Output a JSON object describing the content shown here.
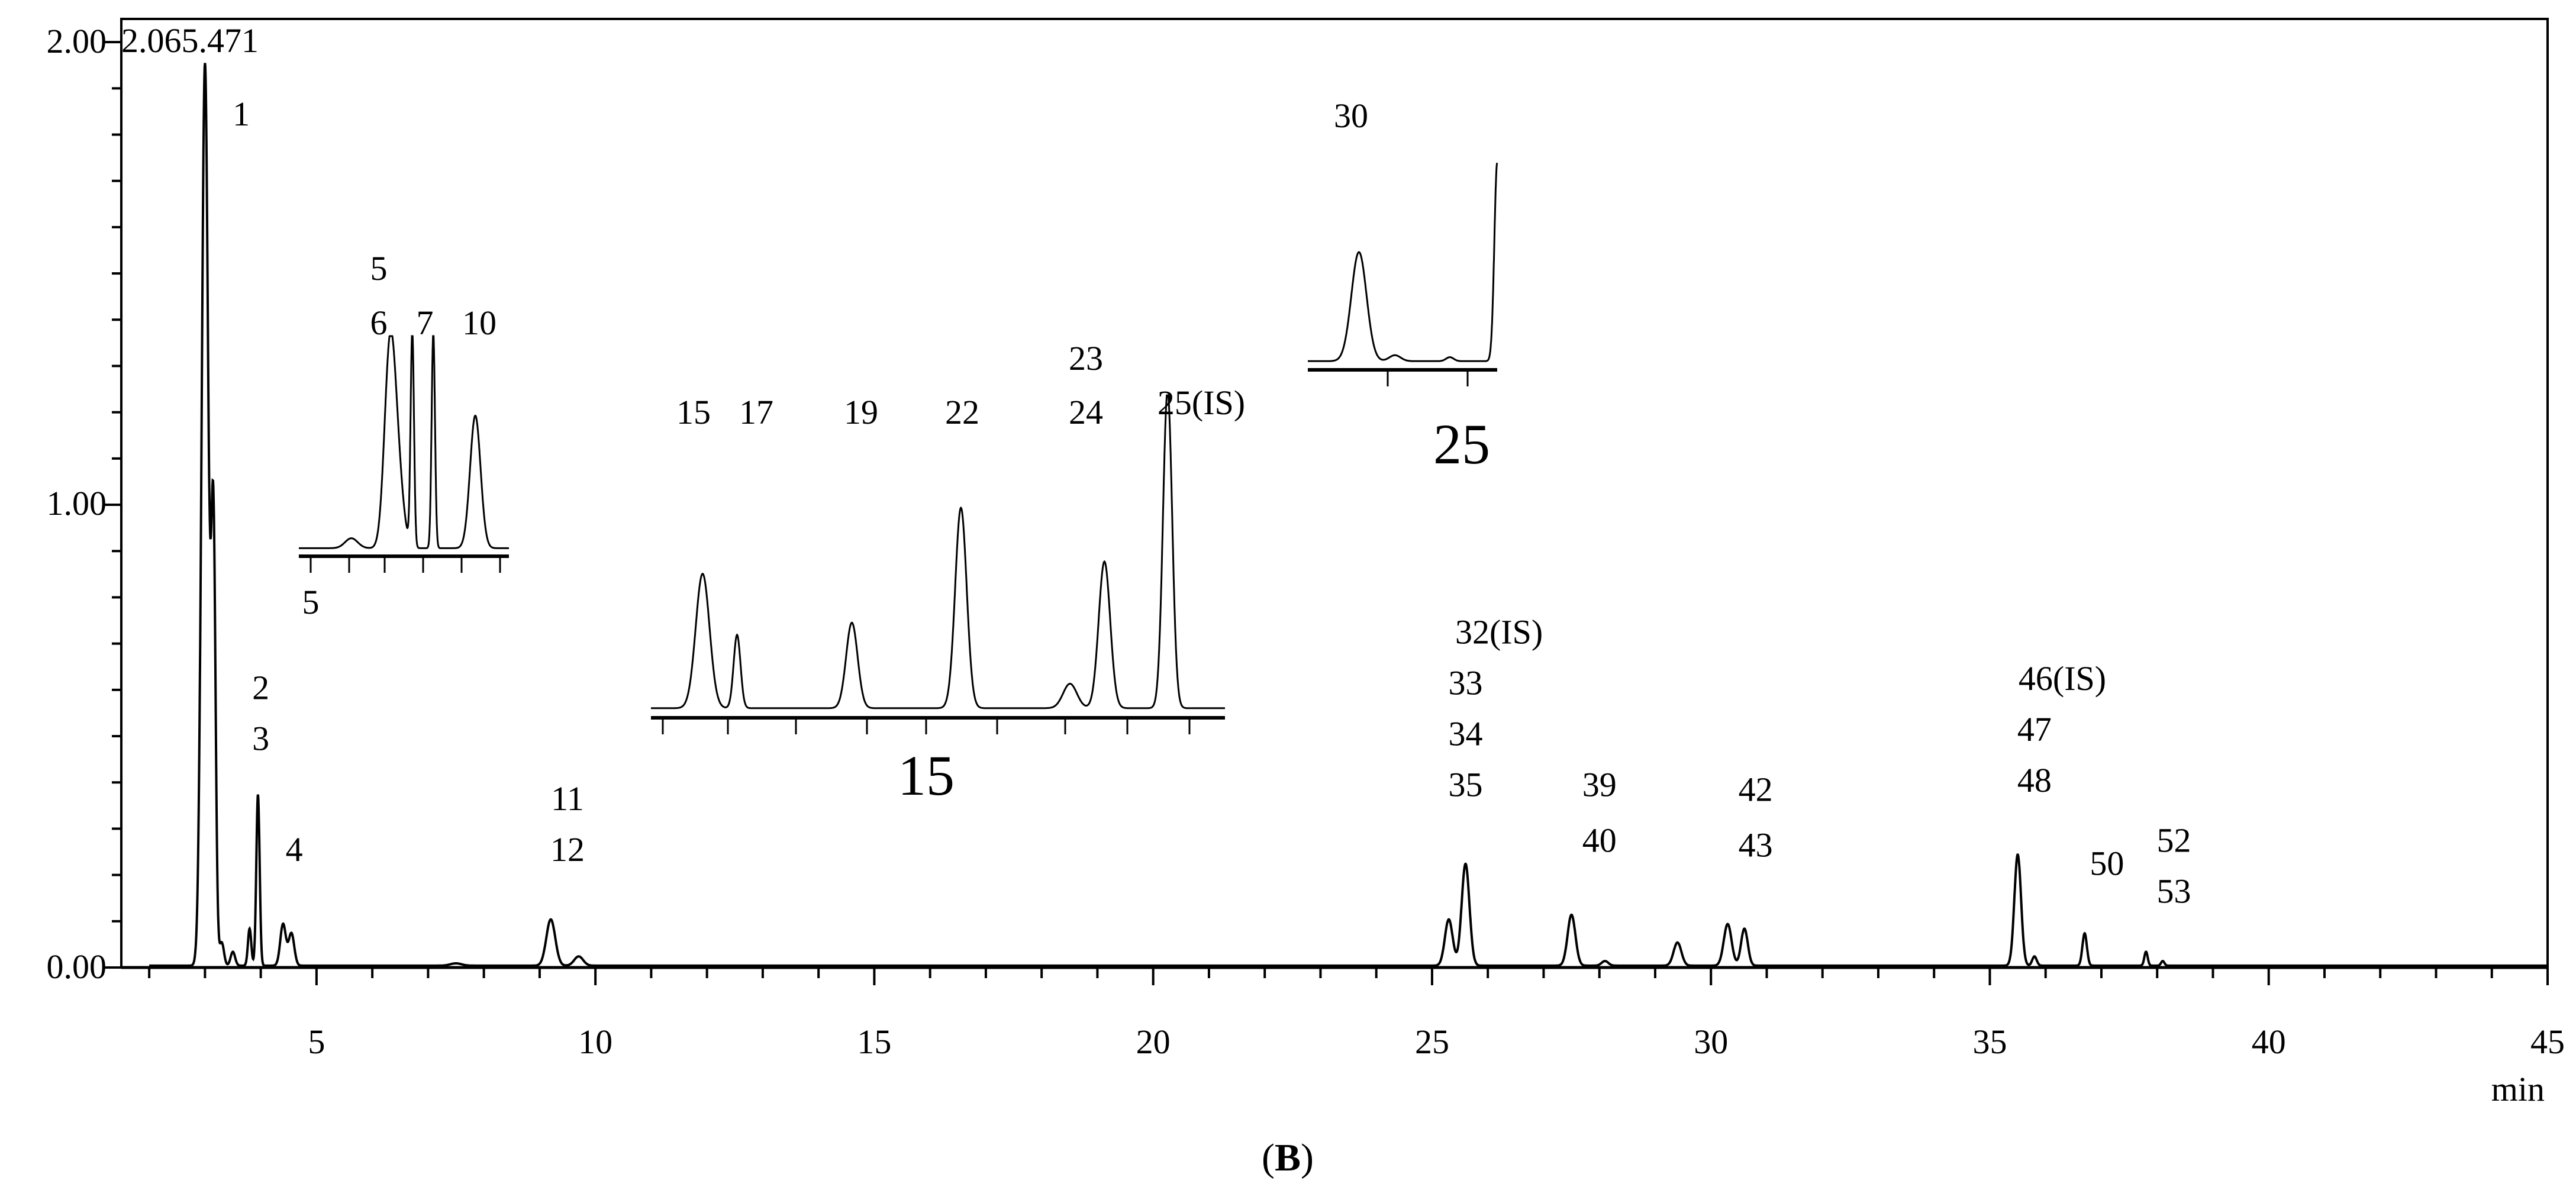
{
  "chart_data": {
    "type": "line",
    "title": "",
    "xlabel": "min",
    "ylabel": "",
    "xlim": [
      1.5,
      45
    ],
    "ylim": [
      0,
      2.05
    ],
    "x_ticks": [
      "5",
      "10",
      "15",
      "20",
      "25",
      "30",
      "35",
      "40",
      "45"
    ],
    "y_ticks": [
      "0.00",
      "1.00",
      "2.00"
    ],
    "max_label": "2.065.471",
    "caption": {
      "open": "(",
      "letter": "B",
      "close": ")"
    },
    "series": [
      {
        "peaks": [
          {
            "x": 3.0,
            "y": 1.95,
            "w": 0.06
          },
          {
            "x": 3.15,
            "y": 0.95,
            "w": 0.04
          },
          {
            "x": 3.3,
            "y": 0.05,
            "w": 0.04
          },
          {
            "x": 3.5,
            "y": 0.03,
            "w": 0.04
          },
          {
            "x": 3.8,
            "y": 0.08,
            "w": 0.03
          },
          {
            "x": 3.95,
            "y": 0.37,
            "w": 0.03
          },
          {
            "x": 4.4,
            "y": 0.09,
            "w": 0.05
          },
          {
            "x": 4.55,
            "y": 0.07,
            "w": 0.05
          },
          {
            "x": 7.5,
            "y": 0.005,
            "w": 0.1
          },
          {
            "x": 9.2,
            "y": 0.1,
            "w": 0.08
          },
          {
            "x": 9.7,
            "y": 0.02,
            "w": 0.08
          },
          {
            "x": 25.3,
            "y": 0.1,
            "w": 0.07
          },
          {
            "x": 25.6,
            "y": 0.22,
            "w": 0.07
          },
          {
            "x": 27.5,
            "y": 0.11,
            "w": 0.07
          },
          {
            "x": 28.1,
            "y": 0.01,
            "w": 0.06
          },
          {
            "x": 29.4,
            "y": 0.05,
            "w": 0.07
          },
          {
            "x": 30.3,
            "y": 0.09,
            "w": 0.07
          },
          {
            "x": 30.6,
            "y": 0.08,
            "w": 0.06
          },
          {
            "x": 35.5,
            "y": 0.24,
            "w": 0.06
          },
          {
            "x": 35.8,
            "y": 0.02,
            "w": 0.04
          },
          {
            "x": 36.7,
            "y": 0.07,
            "w": 0.04
          },
          {
            "x": 37.8,
            "y": 0.03,
            "w": 0.03
          },
          {
            "x": 38.1,
            "y": 0.01,
            "w": 0.03
          }
        ]
      }
    ],
    "peak_labels": [
      {
        "text": "1",
        "x": 3.65,
        "y": 1.82
      },
      {
        "text": "2",
        "x": 4.0,
        "y": 0.58
      },
      {
        "text": "3",
        "x": 4.0,
        "y": 0.47
      },
      {
        "text": "4",
        "x": 4.6,
        "y": 0.23
      },
      {
        "text": "11",
        "x": 9.5,
        "y": 0.34
      },
      {
        "text": "12",
        "x": 9.5,
        "y": 0.23
      },
      {
        "text": "32(IS)",
        "x": 26.2,
        "y": 0.7
      },
      {
        "text": "33",
        "x": 25.6,
        "y": 0.59
      },
      {
        "text": "34",
        "x": 25.6,
        "y": 0.48
      },
      {
        "text": "35",
        "x": 25.6,
        "y": 0.37
      },
      {
        "text": "39",
        "x": 28.0,
        "y": 0.37
      },
      {
        "text": "40",
        "x": 28.0,
        "y": 0.25
      },
      {
        "text": "42",
        "x": 30.8,
        "y": 0.36
      },
      {
        "text": "43",
        "x": 30.8,
        "y": 0.24
      },
      {
        "text": "46(IS)",
        "x": 36.3,
        "y": 0.6
      },
      {
        "text": "47",
        "x": 35.8,
        "y": 0.49
      },
      {
        "text": "48",
        "x": 35.8,
        "y": 0.38
      },
      {
        "text": "50",
        "x": 37.1,
        "y": 0.2
      },
      {
        "text": "52",
        "x": 38.3,
        "y": 0.25
      },
      {
        "text": "53",
        "x": 38.3,
        "y": 0.14
      }
    ],
    "insets": [
      {
        "name": "inset-5",
        "center_tick": "5",
        "peak_labels": [
          "5",
          "6",
          "7",
          "10"
        ],
        "peaks": [
          {
            "x": 0.25,
            "y": 0.06,
            "w": 0.03
          },
          {
            "x": 0.43,
            "y": 0.9,
            "w": 0.025
          },
          {
            "x": 0.46,
            "y": 0.6,
            "w": 0.03
          },
          {
            "x": 0.54,
            "y": 1.3,
            "w": 0.008
          },
          {
            "x": 0.64,
            "y": 1.3,
            "w": 0.008
          },
          {
            "x": 0.84,
            "y": 0.8,
            "w": 0.025
          }
        ]
      },
      {
        "name": "inset-15",
        "center_tick": "15",
        "peak_labels": [
          "15",
          "17",
          "19",
          "22",
          "23",
          "24",
          "25(IS)"
        ],
        "peaks": [
          {
            "x": 0.09,
            "y": 0.55,
            "w": 0.012
          },
          {
            "x": 0.15,
            "y": 0.3,
            "w": 0.006
          },
          {
            "x": 0.35,
            "y": 0.35,
            "w": 0.01
          },
          {
            "x": 0.54,
            "y": 0.82,
            "w": 0.01
          },
          {
            "x": 0.73,
            "y": 0.1,
            "w": 0.012
          },
          {
            "x": 0.79,
            "y": 0.6,
            "w": 0.01
          },
          {
            "x": 0.9,
            "y": 1.3,
            "w": 0.008
          }
        ]
      },
      {
        "name": "inset-25",
        "center_tick": "25",
        "peak_labels": [
          "30"
        ],
        "peaks": [
          {
            "x": 0.27,
            "y": 0.55,
            "w": 0.04
          },
          {
            "x": 0.46,
            "y": 0.03,
            "w": 0.03
          },
          {
            "x": 0.75,
            "y": 0.02,
            "w": 0.02
          },
          {
            "x": 1.0,
            "y": 1.0,
            "w": 0.015
          }
        ]
      }
    ]
  }
}
